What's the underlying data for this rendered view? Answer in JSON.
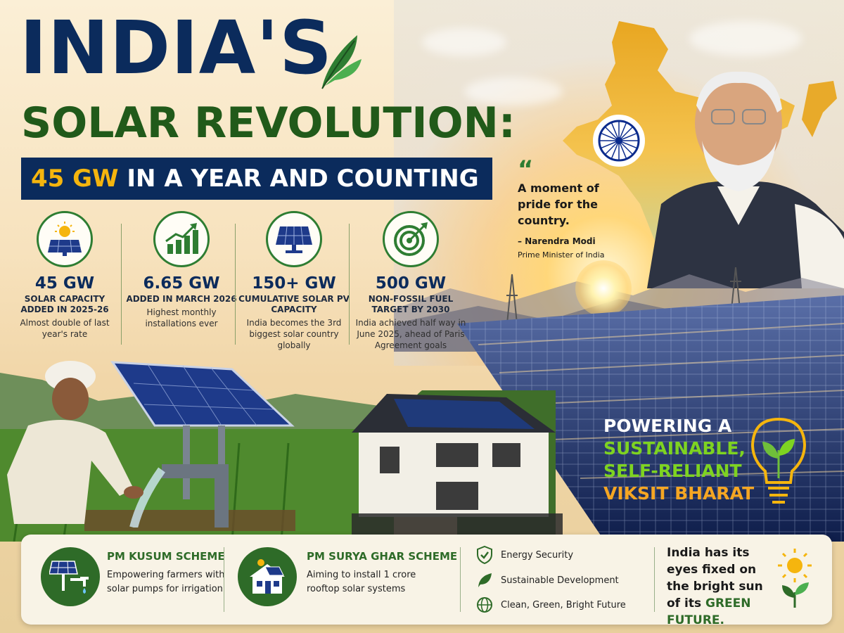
{
  "title_line1": "INDIA'S",
  "title_line2": "SOLAR REVOLUTION:",
  "subtitle_highlight": "45 GW",
  "subtitle_rest": "IN A YEAR AND COUNTING",
  "stats": [
    {
      "value": "45 GW",
      "label": "SOLAR CAPACITY ADDED IN 2025-26",
      "desc": "Almost double of last year's rate",
      "icon": "sun-solar-panel-icon"
    },
    {
      "value": "6.65 GW",
      "label": "ADDED IN MARCH 2026",
      "desc": "Highest monthly installations ever",
      "icon": "growth-chart-icon"
    },
    {
      "value": "150+ GW",
      "label": "CUMULATIVE SOLAR PV CAPACITY",
      "desc": "India becomes the 3rd biggest solar country globally",
      "icon": "solar-panel-icon"
    },
    {
      "value": "500 GW",
      "label": "NON-FOSSIL FUEL TARGET BY 2030",
      "desc": "India achieved half way in June 2025, ahead of Paris Agreement goals",
      "icon": "target-icon"
    }
  ],
  "quote": {
    "mark": "“",
    "text": "A moment of pride for the country.",
    "name": "– Narendra Modi",
    "role": "Prime Minister of India"
  },
  "powering": {
    "line1": "POWERING A",
    "line2": "SUSTAINABLE,",
    "line3": "SELF-RELIANT",
    "line4": "VIKSIT BHARAT"
  },
  "schemes": [
    {
      "title": "PM KUSUM SCHEME",
      "desc": "Empowering farmers with solar pumps for irrigation",
      "icon": "solar-pump-icon"
    },
    {
      "title": "PM SURYA GHAR SCHEME",
      "desc": "Aiming to install 1 crore rooftop solar systems",
      "icon": "rooftop-solar-house-icon"
    }
  ],
  "features": [
    {
      "label": "Energy Security",
      "icon": "shield-check-icon"
    },
    {
      "label": "Sustainable Development",
      "icon": "leaf-icon"
    },
    {
      "label": "Clean, Green, Bright Future",
      "icon": "globe-icon"
    }
  ],
  "closing": {
    "text": "India has its eyes fixed on the bright sun of its",
    "highlight": "GREEN FUTURE."
  },
  "colors": {
    "navy": "#0b2b5c",
    "green": "#2e6b28",
    "gold": "#f5b50e",
    "lime": "#7ed321",
    "orange": "#f5a623"
  }
}
